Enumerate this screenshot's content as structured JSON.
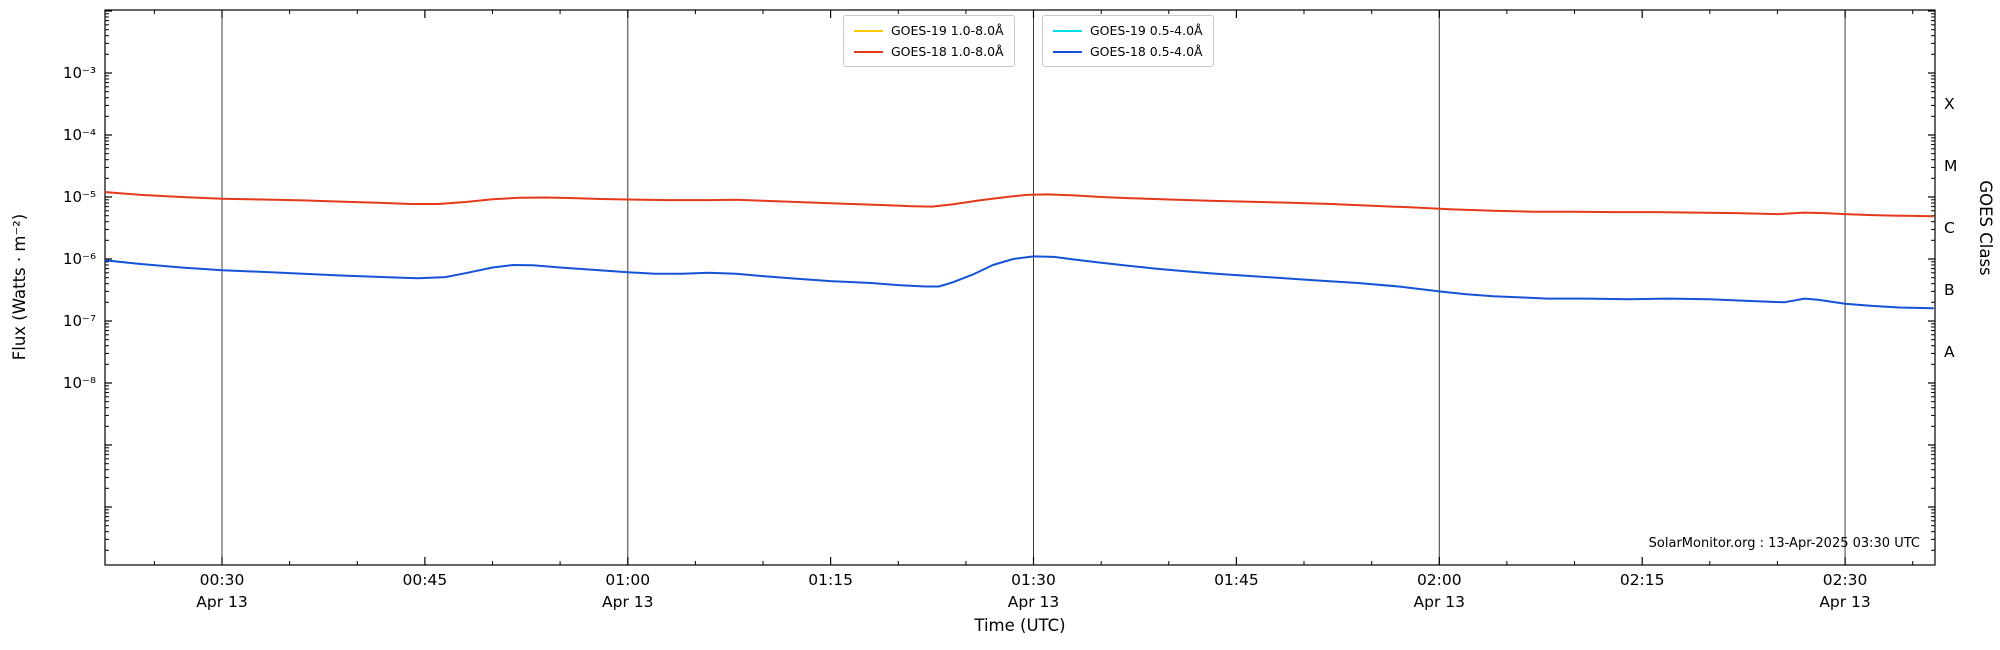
{
  "watermark": "SolarMonitor.org : 13-Apr-2025 03:30 UTC",
  "axes": {
    "xlabel": "Time (UTC)",
    "ylabel_left": "Flux (Watts · m⁻²)",
    "ylabel_right": "GOES Class",
    "x_ticks": [
      {
        "t": 30,
        "label": "00:30",
        "sub": "Apr 13"
      },
      {
        "t": 45,
        "label": "00:45"
      },
      {
        "t": 60,
        "label": "01:00",
        "sub": "Apr 13"
      },
      {
        "t": 75,
        "label": "01:15"
      },
      {
        "t": 90,
        "label": "01:30",
        "sub": "Apr 13"
      },
      {
        "t": 105,
        "label": "01:45"
      },
      {
        "t": 120,
        "label": "02:00",
        "sub": "Apr 13"
      },
      {
        "t": 135,
        "label": "02:15"
      },
      {
        "t": 150,
        "label": "02:30",
        "sub": "Apr 13"
      }
    ],
    "y_tick_labels": [
      {
        "exp": -3,
        "label": "10⁻³"
      },
      {
        "exp": -4,
        "label": "10⁻⁴"
      },
      {
        "exp": -5,
        "label": "10⁻⁵"
      },
      {
        "exp": -6,
        "label": "10⁻⁶"
      },
      {
        "exp": -7,
        "label": "10⁻⁷"
      },
      {
        "exp": -8,
        "label": "10⁻⁸"
      }
    ],
    "goes_classes": [
      {
        "label": "X",
        "exp": -3.5
      },
      {
        "label": "M",
        "exp": -4.5
      },
      {
        "label": "C",
        "exp": -5.5
      },
      {
        "label": "B",
        "exp": -6.5
      },
      {
        "label": "A",
        "exp": -7.5
      }
    ]
  },
  "legend": {
    "boxes": [
      {
        "items": [
          {
            "label": "GOES-19 1.0-8.0Å",
            "color": "#ffc800"
          },
          {
            "label": "GOES-18 1.0-8.0Å",
            "color": "#e5391b"
          }
        ]
      },
      {
        "items": [
          {
            "label": "GOES-19 0.5-4.0Å",
            "color": "#00dce8"
          },
          {
            "label": "GOES-18 0.5-4.0Å",
            "color": "#1453d8"
          }
        ]
      }
    ]
  },
  "chart_data": {
    "type": "line",
    "title": "",
    "xlabel": "Time (UTC)",
    "ylabel": "Flux (Watts · m⁻²)",
    "ylabel_right": "GOES Class",
    "x_unit": "minutes after 00:00 UTC on 13-Apr-2025",
    "x_range_minutes": [
      21.35,
      156.65
    ],
    "y_scale": "log",
    "y_labeled_range": [
      1e-08,
      0.001
    ],
    "grid": "solid vertical lines at each 30-minute mark",
    "legend_position": "top-center, two boxes",
    "series": [
      {
        "name": "GOES-18 1.0-8.0Å",
        "color": "#e5391b",
        "points": [
          [
            21.4,
            1.2e-05
          ],
          [
            24,
            1.08e-05
          ],
          [
            27,
            1e-05
          ],
          [
            30,
            9.4e-06
          ],
          [
            33,
            9.1e-06
          ],
          [
            36,
            8.8e-06
          ],
          [
            39,
            8.4e-06
          ],
          [
            42,
            8e-06
          ],
          [
            44,
            7.7e-06
          ],
          [
            46,
            7.7e-06
          ],
          [
            48,
            8.3e-06
          ],
          [
            50,
            9.2e-06
          ],
          [
            52,
            9.7e-06
          ],
          [
            54,
            9.8e-06
          ],
          [
            56,
            9.6e-06
          ],
          [
            58,
            9.3e-06
          ],
          [
            60,
            9.1e-06
          ],
          [
            63,
            8.9e-06
          ],
          [
            66,
            8.9e-06
          ],
          [
            68,
            9e-06
          ],
          [
            70,
            8.7e-06
          ],
          [
            73,
            8.2e-06
          ],
          [
            76,
            7.8e-06
          ],
          [
            79,
            7.4e-06
          ],
          [
            81,
            7.1e-06
          ],
          [
            82.5,
            7e-06
          ],
          [
            84,
            7.6e-06
          ],
          [
            86,
            8.8e-06
          ],
          [
            88,
            1e-05
          ],
          [
            89.5,
            1.08e-05
          ],
          [
            91,
            1.1e-05
          ],
          [
            93,
            1.06e-05
          ],
          [
            95,
            1e-05
          ],
          [
            97,
            9.6e-06
          ],
          [
            100,
            9.1e-06
          ],
          [
            103,
            8.7e-06
          ],
          [
            106,
            8.4e-06
          ],
          [
            109,
            8.1e-06
          ],
          [
            112,
            7.7e-06
          ],
          [
            115,
            7.2e-06
          ],
          [
            118,
            6.8e-06
          ],
          [
            121,
            6.3e-06
          ],
          [
            124,
            6e-06
          ],
          [
            127,
            5.8e-06
          ],
          [
            130,
            5.8e-06
          ],
          [
            133,
            5.7e-06
          ],
          [
            136,
            5.7e-06
          ],
          [
            139,
            5.6e-06
          ],
          [
            142,
            5.5e-06
          ],
          [
            145,
            5.3e-06
          ],
          [
            147,
            5.6e-06
          ],
          [
            148.5,
            5.5e-06
          ],
          [
            150,
            5.3e-06
          ],
          [
            152,
            5.1e-06
          ],
          [
            154,
            5e-06
          ],
          [
            156.5,
            4.9e-06
          ]
        ]
      },
      {
        "name": "GOES-18 0.5-4.0Å",
        "color": "#1453d8",
        "points": [
          [
            21.4,
            9.5e-07
          ],
          [
            24,
            8.3e-07
          ],
          [
            27,
            7.3e-07
          ],
          [
            30,
            6.6e-07
          ],
          [
            33,
            6.2e-07
          ],
          [
            36,
            5.8e-07
          ],
          [
            39,
            5.4e-07
          ],
          [
            42,
            5.1e-07
          ],
          [
            44.5,
            4.9e-07
          ],
          [
            46.5,
            5.1e-07
          ],
          [
            48,
            5.9e-07
          ],
          [
            50,
            7.3e-07
          ],
          [
            51.5,
            8e-07
          ],
          [
            53,
            7.9e-07
          ],
          [
            55,
            7.3e-07
          ],
          [
            57,
            6.8e-07
          ],
          [
            60,
            6.1e-07
          ],
          [
            62,
            5.8e-07
          ],
          [
            64,
            5.8e-07
          ],
          [
            66,
            6e-07
          ],
          [
            68,
            5.8e-07
          ],
          [
            70,
            5.3e-07
          ],
          [
            72,
            4.9e-07
          ],
          [
            75,
            4.4e-07
          ],
          [
            78,
            4.1e-07
          ],
          [
            80,
            3.8e-07
          ],
          [
            82,
            3.6e-07
          ],
          [
            83,
            3.6e-07
          ],
          [
            84,
            4.2e-07
          ],
          [
            85.5,
            5.6e-07
          ],
          [
            87,
            8e-07
          ],
          [
            88.5,
            1e-06
          ],
          [
            90,
            1.1e-06
          ],
          [
            91.5,
            1.08e-06
          ],
          [
            93,
            9.8e-07
          ],
          [
            95,
            8.7e-07
          ],
          [
            97,
            7.8e-07
          ],
          [
            99,
            7e-07
          ],
          [
            101,
            6.4e-07
          ],
          [
            103,
            5.9e-07
          ],
          [
            105,
            5.5e-07
          ],
          [
            108,
            5e-07
          ],
          [
            111,
            4.5e-07
          ],
          [
            114,
            4.1e-07
          ],
          [
            117,
            3.6e-07
          ],
          [
            120,
            3e-07
          ],
          [
            122,
            2.7e-07
          ],
          [
            124,
            2.5e-07
          ],
          [
            126,
            2.4e-07
          ],
          [
            128,
            2.3e-07
          ],
          [
            131,
            2.3e-07
          ],
          [
            134,
            2.25e-07
          ],
          [
            137,
            2.3e-07
          ],
          [
            140,
            2.25e-07
          ],
          [
            143,
            2.1e-07
          ],
          [
            145.5,
            2e-07
          ],
          [
            147,
            2.3e-07
          ],
          [
            148,
            2.2e-07
          ],
          [
            150,
            1.9e-07
          ],
          [
            152,
            1.75e-07
          ],
          [
            154,
            1.65e-07
          ],
          [
            156.5,
            1.6e-07
          ]
        ]
      },
      {
        "name": "GOES-19 1.0-8.0Å",
        "color": "#ffc800",
        "points": []
      },
      {
        "name": "GOES-19 0.5-4.0Å",
        "color": "#00dce8",
        "points": []
      }
    ]
  }
}
